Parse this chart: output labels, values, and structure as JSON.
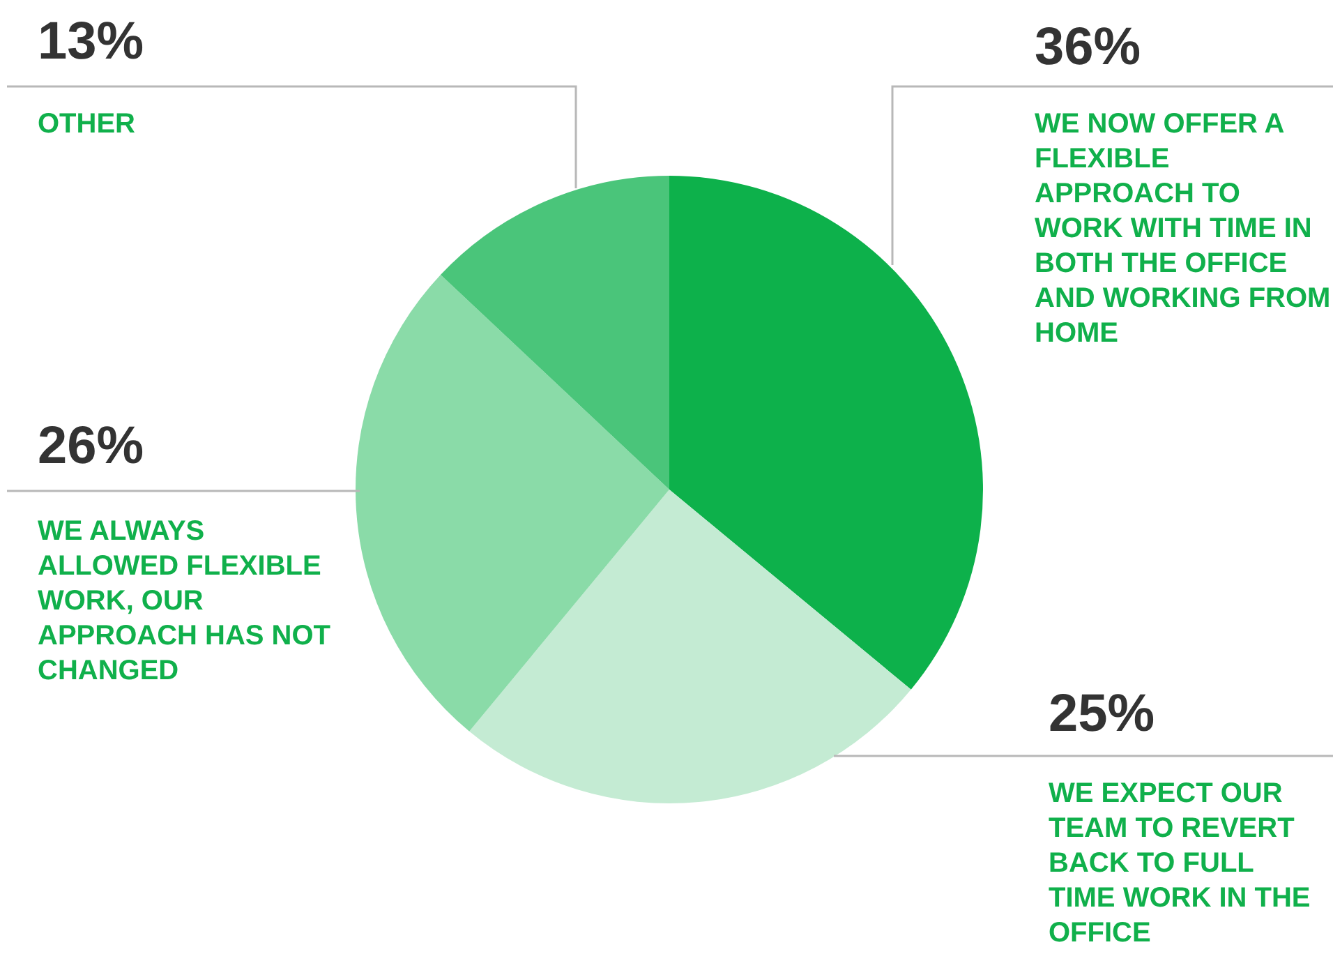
{
  "chart_data": {
    "type": "pie",
    "categories": [
      "WE NOW OFFER A FLEXIBLE APPROACH TO WORK WITH TIME IN BOTH THE OFFICE AND WORKING FROM HOME",
      "WE EXPECT OUR TEAM TO REVERT BACK TO FULL TIME WORK IN THE OFFICE",
      "WE ALWAYS ALLOWED FLEXIBLE WORK, OUR APPROACH HAS NOT CHANGED",
      "OTHER"
    ],
    "values": [
      36,
      25,
      26,
      13
    ],
    "value_labels": [
      "36%",
      "25%",
      "26%",
      "13%"
    ],
    "colors": [
      "#0db14b",
      "#c4ebd3",
      "#8adba8",
      "#4ac57a"
    ]
  }
}
